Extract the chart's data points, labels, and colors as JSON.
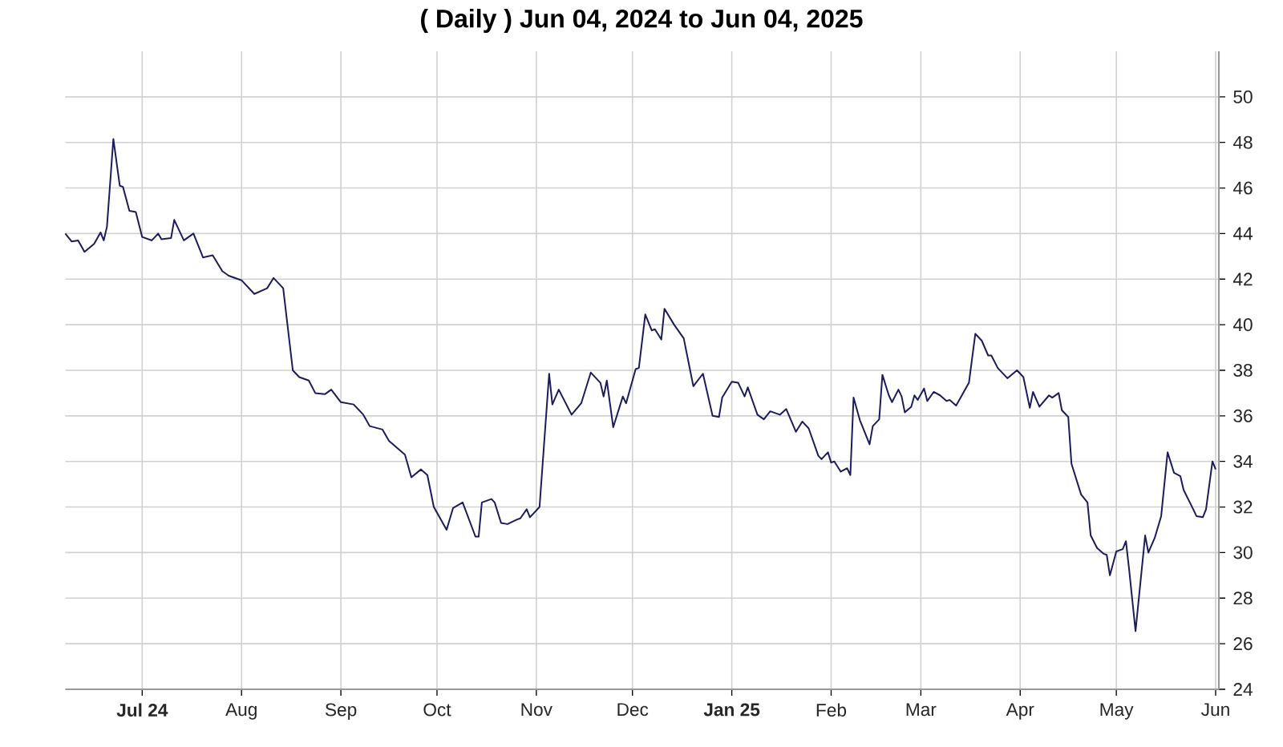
{
  "chart_data": {
    "type": "line",
    "title": "( Daily ) Jun 04, 2024 to Jun 04, 2025",
    "x": [
      "2024-06-07",
      "2024-06-09",
      "2024-06-11",
      "2024-06-13",
      "2024-06-16",
      "2024-06-18",
      "2024-06-19",
      "2024-06-20",
      "2024-06-22",
      "2024-06-24",
      "2024-06-25",
      "2024-06-27",
      "2024-06-29",
      "2024-07-01",
      "2024-07-04",
      "2024-07-06",
      "2024-07-07",
      "2024-07-10",
      "2024-07-11",
      "2024-07-14",
      "2024-07-17",
      "2024-07-20",
      "2024-07-23",
      "2024-07-26",
      "2024-07-28",
      "2024-08-01",
      "2024-08-05",
      "2024-08-09",
      "2024-08-11",
      "2024-08-14",
      "2024-08-16",
      "2024-08-17",
      "2024-08-19",
      "2024-08-22",
      "2024-08-24",
      "2024-08-27",
      "2024-08-29",
      "2024-09-01",
      "2024-09-05",
      "2024-09-08",
      "2024-09-10",
      "2024-09-14",
      "2024-09-16",
      "2024-09-21",
      "2024-09-23",
      "2024-09-26",
      "2024-09-28",
      "2024-09-30",
      "2024-10-04",
      "2024-10-06",
      "2024-10-09",
      "2024-10-13",
      "2024-10-14",
      "2024-10-15",
      "2024-10-18",
      "2024-10-19",
      "2024-10-21",
      "2024-10-23",
      "2024-10-26",
      "2024-10-27",
      "2024-10-29",
      "2024-10-30",
      "2024-11-02",
      "2024-11-05",
      "2024-11-06",
      "2024-11-08",
      "2024-11-12",
      "2024-11-15",
      "2024-11-18",
      "2024-11-21",
      "2024-11-22",
      "2024-11-23",
      "2024-11-25",
      "2024-11-28",
      "2024-11-29",
      "2024-12-02",
      "2024-12-03",
      "2024-12-05",
      "2024-12-07",
      "2024-12-08",
      "2024-12-10",
      "2024-12-11",
      "2024-12-14",
      "2024-12-17",
      "2024-12-19",
      "2024-12-20",
      "2024-12-23",
      "2024-12-26",
      "2024-12-28",
      "2024-12-29",
      "2025-01-01",
      "2025-01-03",
      "2025-01-05",
      "2025-01-06",
      "2025-01-09",
      "2025-01-11",
      "2025-01-13",
      "2025-01-16",
      "2025-01-18",
      "2025-01-21",
      "2025-01-23",
      "2025-01-25",
      "2025-01-28",
      "2025-01-29",
      "2025-01-31",
      "2025-02-01",
      "2025-02-02",
      "2025-02-04",
      "2025-02-06",
      "2025-02-07",
      "2025-02-08",
      "2025-02-10",
      "2025-02-11",
      "2025-02-13",
      "2025-02-14",
      "2025-02-16",
      "2025-02-17",
      "2025-02-19",
      "2025-02-20",
      "2025-02-22",
      "2025-02-23",
      "2025-02-24",
      "2025-02-26",
      "2025-02-27",
      "2025-02-28",
      "2025-03-02",
      "2025-03-03",
      "2025-03-05",
      "2025-03-07",
      "2025-03-09",
      "2025-03-10",
      "2025-03-12",
      "2025-03-13",
      "2025-03-16",
      "2025-03-18",
      "2025-03-20",
      "2025-03-22",
      "2025-03-23",
      "2025-03-25",
      "2025-03-28",
      "2025-03-31",
      "2025-04-02",
      "2025-04-04",
      "2025-04-05",
      "2025-04-07",
      "2025-04-10",
      "2025-04-11",
      "2025-04-13",
      "2025-04-14",
      "2025-04-16",
      "2025-04-17",
      "2025-04-20",
      "2025-04-22",
      "2025-04-23",
      "2025-04-25",
      "2025-04-27",
      "2025-04-28",
      "2025-04-29",
      "2025-05-01",
      "2025-05-03",
      "2025-05-04",
      "2025-05-05",
      "2025-05-07",
      "2025-05-08",
      "2025-05-10",
      "2025-05-11",
      "2025-05-13",
      "2025-05-15",
      "2025-05-16",
      "2025-05-17",
      "2025-05-19",
      "2025-05-21",
      "2025-05-22",
      "2025-05-25",
      "2025-05-26",
      "2025-05-28",
      "2025-05-29",
      "2025-05-31",
      "2025-06-01"
    ],
    "series": [
      {
        "color": "#1c1c5c",
        "values": [
          44.0,
          43.65,
          43.7,
          43.2,
          43.55,
          44.05,
          43.7,
          44.3,
          48.15,
          46.1,
          46.05,
          45.0,
          44.95,
          43.85,
          43.7,
          44.0,
          43.75,
          43.8,
          44.6,
          43.7,
          44.0,
          42.95,
          43.05,
          42.35,
          42.15,
          41.95,
          41.35,
          41.6,
          42.05,
          41.6,
          39.2,
          38.0,
          37.7,
          37.55,
          37.0,
          36.95,
          37.15,
          36.6,
          36.5,
          36.05,
          35.55,
          35.4,
          34.9,
          34.3,
          33.3,
          33.65,
          33.4,
          32.0,
          31.0,
          31.95,
          32.2,
          30.7,
          30.7,
          32.2,
          32.35,
          32.2,
          31.3,
          31.25,
          31.45,
          31.5,
          31.9,
          31.55,
          32.0,
          37.85,
          36.5,
          37.15,
          36.05,
          36.55,
          37.9,
          37.45,
          36.85,
          37.55,
          35.5,
          36.85,
          36.55,
          38.05,
          38.1,
          40.45,
          39.75,
          39.8,
          39.35,
          40.7,
          40.0,
          39.4,
          38.0,
          37.3,
          37.85,
          36.0,
          35.95,
          36.8,
          37.5,
          37.45,
          36.85,
          37.25,
          36.05,
          35.85,
          36.2,
          36.05,
          36.3,
          35.3,
          35.75,
          35.45,
          34.25,
          34.1,
          34.4,
          33.95,
          34.0,
          33.55,
          33.7,
          33.4,
          36.8,
          35.8,
          35.45,
          34.75,
          35.55,
          35.85,
          37.8,
          36.9,
          36.6,
          37.15,
          36.85,
          36.15,
          36.4,
          36.9,
          36.7,
          37.2,
          36.65,
          37.05,
          36.9,
          36.65,
          36.7,
          36.45,
          36.7,
          37.45,
          39.6,
          39.3,
          38.65,
          38.65,
          38.1,
          37.65,
          38.0,
          37.7,
          36.35,
          37.05,
          36.4,
          36.9,
          36.8,
          37.0,
          36.25,
          35.95,
          33.9,
          32.55,
          32.2,
          30.75,
          30.2,
          29.95,
          29.9,
          29.0,
          30.05,
          30.15,
          30.5,
          29.25,
          26.55,
          27.95,
          30.75,
          30.0,
          30.65,
          31.6,
          33.0,
          34.4,
          33.5,
          33.35,
          32.75,
          31.9,
          31.6,
          31.55,
          31.9,
          34.0,
          33.65
        ]
      }
    ],
    "xlim": [
      "2024-06-07",
      "2025-06-02"
    ],
    "xticks": [
      {
        "value": "2024-07-01",
        "label": "Jul 24"
      },
      {
        "value": "2024-08-01",
        "label": "Aug"
      },
      {
        "value": "2024-09-01",
        "label": "Sep"
      },
      {
        "value": "2024-10-01",
        "label": "Oct"
      },
      {
        "value": "2024-11-01",
        "label": "Nov"
      },
      {
        "value": "2024-12-01",
        "label": "Dec"
      },
      {
        "value": "2025-01-01",
        "label": "Jan 25"
      },
      {
        "value": "2025-02-01",
        "label": "Feb"
      },
      {
        "value": "2025-03-01",
        "label": "Mar"
      },
      {
        "value": "2025-04-01",
        "label": "Apr"
      },
      {
        "value": "2025-05-01",
        "label": "May"
      },
      {
        "value": "2025-06-01",
        "label": "Jun"
      }
    ],
    "ylim": [
      24,
      52
    ],
    "yticks": [
      24,
      26,
      28,
      30,
      32,
      34,
      36,
      38,
      40,
      42,
      44,
      46,
      48,
      50
    ],
    "grid": true,
    "marker": "none",
    "line_style": "solid"
  }
}
